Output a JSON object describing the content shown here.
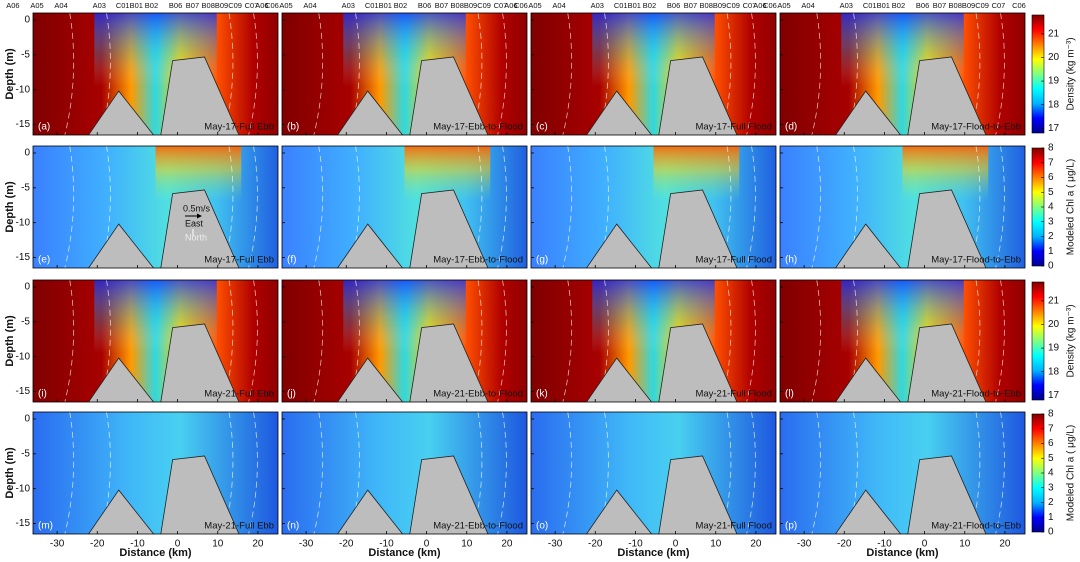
{
  "chart_data": {
    "type": "contour",
    "xlabel": "Distance (km)",
    "ylabel": "Depth (m)",
    "xlim": [
      -36,
      25
    ],
    "ylim": [
      -16.5,
      1
    ],
    "xticks": [
      -30,
      -20,
      -10,
      0,
      10,
      20
    ],
    "yticks": [
      0,
      -5,
      -10,
      -15
    ],
    "stations": [
      {
        "name": "A06",
        "x": -41
      },
      {
        "name": "A05",
        "x": -35
      },
      {
        "name": "A04",
        "x": -29
      },
      {
        "name": "A03",
        "x": -19.5
      },
      {
        "name": "C01B01",
        "x": -12
      },
      {
        "name": "B02",
        "x": -6.5
      },
      {
        "name": "B06",
        "x": -0.5
      },
      {
        "name": "B07",
        "x": 3.7
      },
      {
        "name": "B08B09C09",
        "x": 11
      },
      {
        "name": "C07",
        "x": 18.4
      },
      {
        "name": "C06",
        "x": 23.5
      }
    ],
    "colormap": [
      "#00008f",
      "#0000ff",
      "#00b4ff",
      "#00ffff",
      "#80ff80",
      "#ffff00",
      "#ff8000",
      "#ff0000",
      "#800000"
    ],
    "annotations": {
      "scale": "0.5m/s",
      "east": "East",
      "north": "North"
    },
    "rows": [
      {
        "colorbar": {
          "label": "Density (kg m⁻³)",
          "lim": [
            16.8,
            21.8
          ],
          "ticks": [
            17,
            18,
            19,
            20,
            21
          ]
        },
        "panels": [
          {
            "label": "(a)",
            "title": "May-17-Full Ebb"
          },
          {
            "label": "(b)",
            "title": "May-17-Ebb-to-Flood"
          },
          {
            "label": "(c)",
            "title": "May-17-Full Flood"
          },
          {
            "label": "(d)",
            "title": "May-17-Flood-to-Ebb"
          }
        ]
      },
      {
        "colorbar": {
          "label": "Modeled Chl a ( μg/L)",
          "lim": [
            0,
            8
          ],
          "ticks": [
            0,
            1,
            2,
            3,
            4,
            5,
            6,
            7,
            8
          ]
        },
        "panels": [
          {
            "label": "(e)",
            "title": "May-17-Full Ebb"
          },
          {
            "label": "(f)",
            "title": "May-17-Ebb-to-Flood"
          },
          {
            "label": "(g)",
            "title": "May-17-Full Flood"
          },
          {
            "label": "(h)",
            "title": "May-17-Flood-to-Ebb"
          }
        ]
      },
      {
        "colorbar": {
          "label": "Density (kg m⁻³)",
          "lim": [
            16.8,
            21.8
          ],
          "ticks": [
            17,
            18,
            19,
            20,
            21
          ]
        },
        "panels": [
          {
            "label": "(i)",
            "title": "May-21-Full Ebb"
          },
          {
            "label": "(j)",
            "title": "May-21-Ebb-to-Flood"
          },
          {
            "label": "(k)",
            "title": "May-21-Full Flood"
          },
          {
            "label": "(l)",
            "title": "May-21-Flood-to-Ebb"
          }
        ]
      },
      {
        "colorbar": {
          "label": "Modeled Chl a ( μg/L)",
          "lim": [
            0,
            8
          ],
          "ticks": [
            0,
            1,
            2,
            3,
            4,
            5,
            6,
            7,
            8
          ]
        },
        "panels": [
          {
            "label": "(m)",
            "title": "May-21-Full Ebb"
          },
          {
            "label": "(n)",
            "title": "May-21-Ebb-to-Flood"
          },
          {
            "label": "(o)",
            "title": "May-21-Full Flood"
          },
          {
            "label": "(p)",
            "title": "May-21-Flood-to-Ebb"
          }
        ]
      }
    ]
  }
}
